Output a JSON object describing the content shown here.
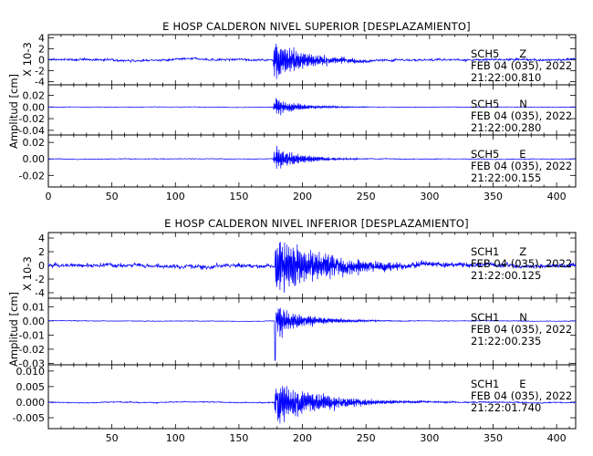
{
  "chart_data": [
    {
      "type": "line",
      "title": "E HOSP CALDERON NIVEL SUPERIOR [DESPLAZAMIENTO]",
      "ylabel": "Amplitud [cm]",
      "xlim": [
        0,
        415
      ],
      "x_ticks": [
        "0",
        "50",
        "100",
        "150",
        "200",
        "250",
        "300",
        "350",
        "400"
      ],
      "series_color": "#0000ff",
      "traces": [
        {
          "station": "SCH5",
          "component": "Z",
          "date": "FEB 04 (035), 2022",
          "time": "21:22:00.810",
          "scale_label": "X 10-3",
          "ylim": [
            -4.6,
            4.6
          ],
          "yticks": [
            "4",
            "2",
            "0",
            "-2",
            "-4"
          ],
          "ytick_values": [
            4,
            2,
            0,
            -2,
            -4
          ],
          "event_onset_s": 177,
          "peak_amplitude": 4.4,
          "noise_level": 0.35,
          "coda_decay_s": 25
        },
        {
          "station": "SCH5",
          "component": "N",
          "date": "FEB 04 (035), 2022",
          "time": "21:22:00.280",
          "ylim": [
            -0.048,
            0.038
          ],
          "yticks": [
            "0.02",
            "0.00",
            "-0.02",
            "-0.04"
          ],
          "ytick_values": [
            0.02,
            0.0,
            -0.02,
            -0.04
          ],
          "event_onset_s": 177,
          "peak_amplitude": 0.018,
          "noise_level": 0.0008,
          "coda_decay_s": 20
        },
        {
          "station": "SCH5",
          "component": "E",
          "date": "FEB 04 (035), 2022",
          "time": "21:22:00.155",
          "ylim": [
            -0.034,
            0.029
          ],
          "yticks": [
            "0.02",
            "0.00",
            "-0.02"
          ],
          "ytick_values": [
            0.02,
            0.0,
            -0.02
          ],
          "event_onset_s": 177,
          "peak_amplitude": 0.018,
          "noise_level": 0.0007,
          "coda_decay_s": 20
        }
      ]
    },
    {
      "type": "line",
      "title": "E HOSP CALDERON NIVEL INFERIOR [DESPLAZAMIENTO]",
      "ylabel": "Amplitud [cm]",
      "xlim": [
        0,
        415
      ],
      "x_ticks": [
        "",
        "50",
        "100",
        "150",
        "200",
        "250",
        "300",
        "350",
        "400"
      ],
      "series_color": "#0000ff",
      "traces": [
        {
          "station": "SCH1",
          "component": "Z",
          "date": "FEB 04 (035), 2022",
          "time": "21:22:00.125",
          "scale_label": "X 10-3",
          "ylim": [
            -4.8,
            4.8
          ],
          "yticks": [
            "4",
            "2",
            "0",
            "-2",
            "-4"
          ],
          "ytick_values": [
            4,
            2,
            0,
            -2,
            -4
          ],
          "event_onset_s": 178,
          "peak_amplitude": 4.4,
          "noise_level": 0.5,
          "coda_decay_s": 45
        },
        {
          "station": "SCH1",
          "component": "N",
          "date": "FEB 04 (035), 2022",
          "time": "21:22:00.235",
          "ylim": [
            -0.031,
            0.016
          ],
          "yticks": [
            "0.01",
            "0.00",
            "-0.01",
            "-0.02",
            "-0.03"
          ],
          "ytick_values": [
            0.01,
            0.0,
            -0.01,
            -0.02,
            -0.03
          ],
          "event_onset_s": 178,
          "peak_amplitude": 0.012,
          "noise_level": 0.0004,
          "coda_decay_s": 25,
          "spike_min": -0.028
        },
        {
          "station": "SCH1",
          "component": "E",
          "date": "FEB 04 (035), 2022",
          "time": "21:22:01.740",
          "ylim": [
            -0.0085,
            0.012
          ],
          "yticks": [
            "0.010",
            "0.005",
            "0.000",
            "-0.005"
          ],
          "ytick_values": [
            0.01,
            0.005,
            0.0,
            -0.005
          ],
          "event_onset_s": 178,
          "peak_amplitude": 0.0085,
          "noise_level": 0.0003,
          "coda_decay_s": 35
        }
      ]
    }
  ]
}
